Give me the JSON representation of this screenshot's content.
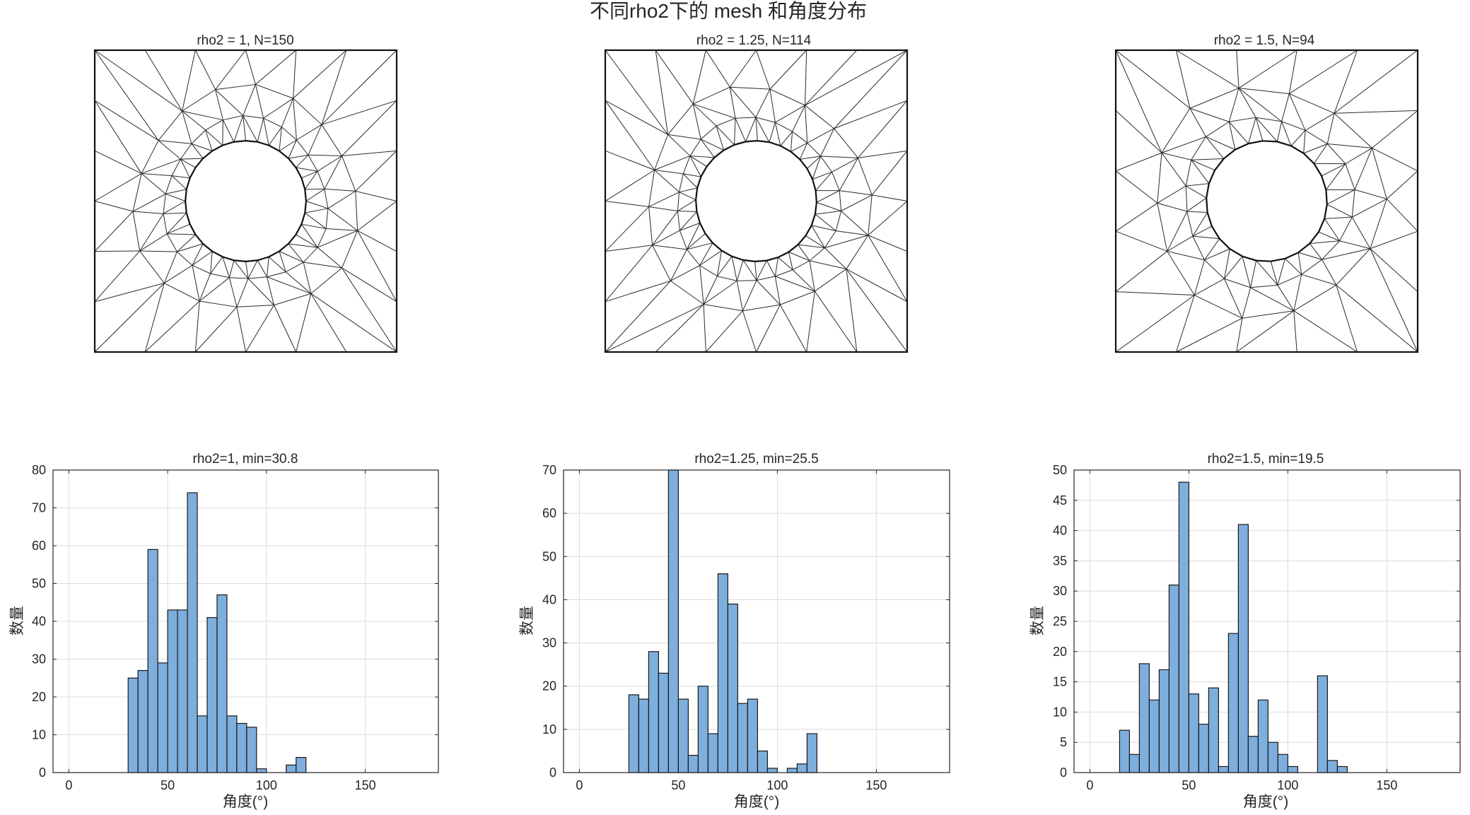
{
  "figure": {
    "title": "不同rho2下的 mesh 和角度分布"
  },
  "meshes": [
    {
      "title": "rho2 = 1, N=150"
    },
    {
      "title": "rho2 = 1.25, N=114"
    },
    {
      "title": "rho2 = 1.5, N=94"
    }
  ],
  "chart_data": [
    {
      "type": "bar",
      "title": "rho2=1, min=30.8",
      "xlabel": "角度(°)",
      "ylabel": "数量",
      "xlim": [
        -8,
        187
      ],
      "ylim": [
        0,
        80
      ],
      "xticks": [
        0,
        50,
        100,
        150
      ],
      "yticks": [
        0,
        10,
        20,
        30,
        40,
        50,
        60,
        70,
        80
      ],
      "grid": true,
      "bin_width": 5,
      "bin_edges_start": [
        30,
        35,
        40,
        45,
        50,
        55,
        60,
        65,
        70,
        75,
        80,
        85,
        90,
        95,
        110,
        115
      ],
      "values": [
        25,
        27,
        59,
        29,
        43,
        43,
        74,
        15,
        41,
        47,
        15,
        13,
        12,
        1,
        2,
        4
      ]
    },
    {
      "type": "bar",
      "title": "rho2=1.25, min=25.5",
      "xlabel": "角度(°)",
      "ylabel": "数量",
      "xlim": [
        -8,
        187
      ],
      "ylim": [
        0,
        70
      ],
      "xticks": [
        0,
        50,
        100,
        150
      ],
      "yticks": [
        0,
        10,
        20,
        30,
        40,
        50,
        60,
        70
      ],
      "grid": true,
      "bin_width": 5,
      "bin_edges_start": [
        25,
        30,
        35,
        40,
        45,
        50,
        55,
        60,
        65,
        70,
        75,
        80,
        85,
        90,
        95,
        105,
        110,
        115
      ],
      "values": [
        18,
        17,
        28,
        23,
        70,
        17,
        4,
        20,
        9,
        46,
        39,
        16,
        17,
        5,
        1,
        1,
        2,
        9
      ]
    },
    {
      "type": "bar",
      "title": "rho2=1.5, min=19.5",
      "xlabel": "角度(°)",
      "ylabel": "数量",
      "xlim": [
        -8,
        187
      ],
      "ylim": [
        0,
        50
      ],
      "xticks": [
        0,
        50,
        100,
        150
      ],
      "yticks": [
        0,
        5,
        10,
        15,
        20,
        25,
        30,
        35,
        40,
        45,
        50
      ],
      "grid": true,
      "bin_width": 5,
      "bin_edges_start": [
        15,
        20,
        25,
        30,
        35,
        40,
        45,
        50,
        55,
        60,
        65,
        70,
        75,
        80,
        85,
        90,
        95,
        100,
        115,
        120,
        125
      ],
      "values": [
        7,
        3,
        18,
        12,
        17,
        31,
        48,
        13,
        8,
        14,
        1,
        23,
        41,
        6,
        12,
        5,
        3,
        1,
        16,
        2,
        1
      ]
    }
  ],
  "colors": {
    "bar_fill": "#7eaedc",
    "bar_edge": "#1a1a1a",
    "grid": "#dcdcdc",
    "axis": "#262626",
    "mesh_line": "#2b2b2b"
  }
}
